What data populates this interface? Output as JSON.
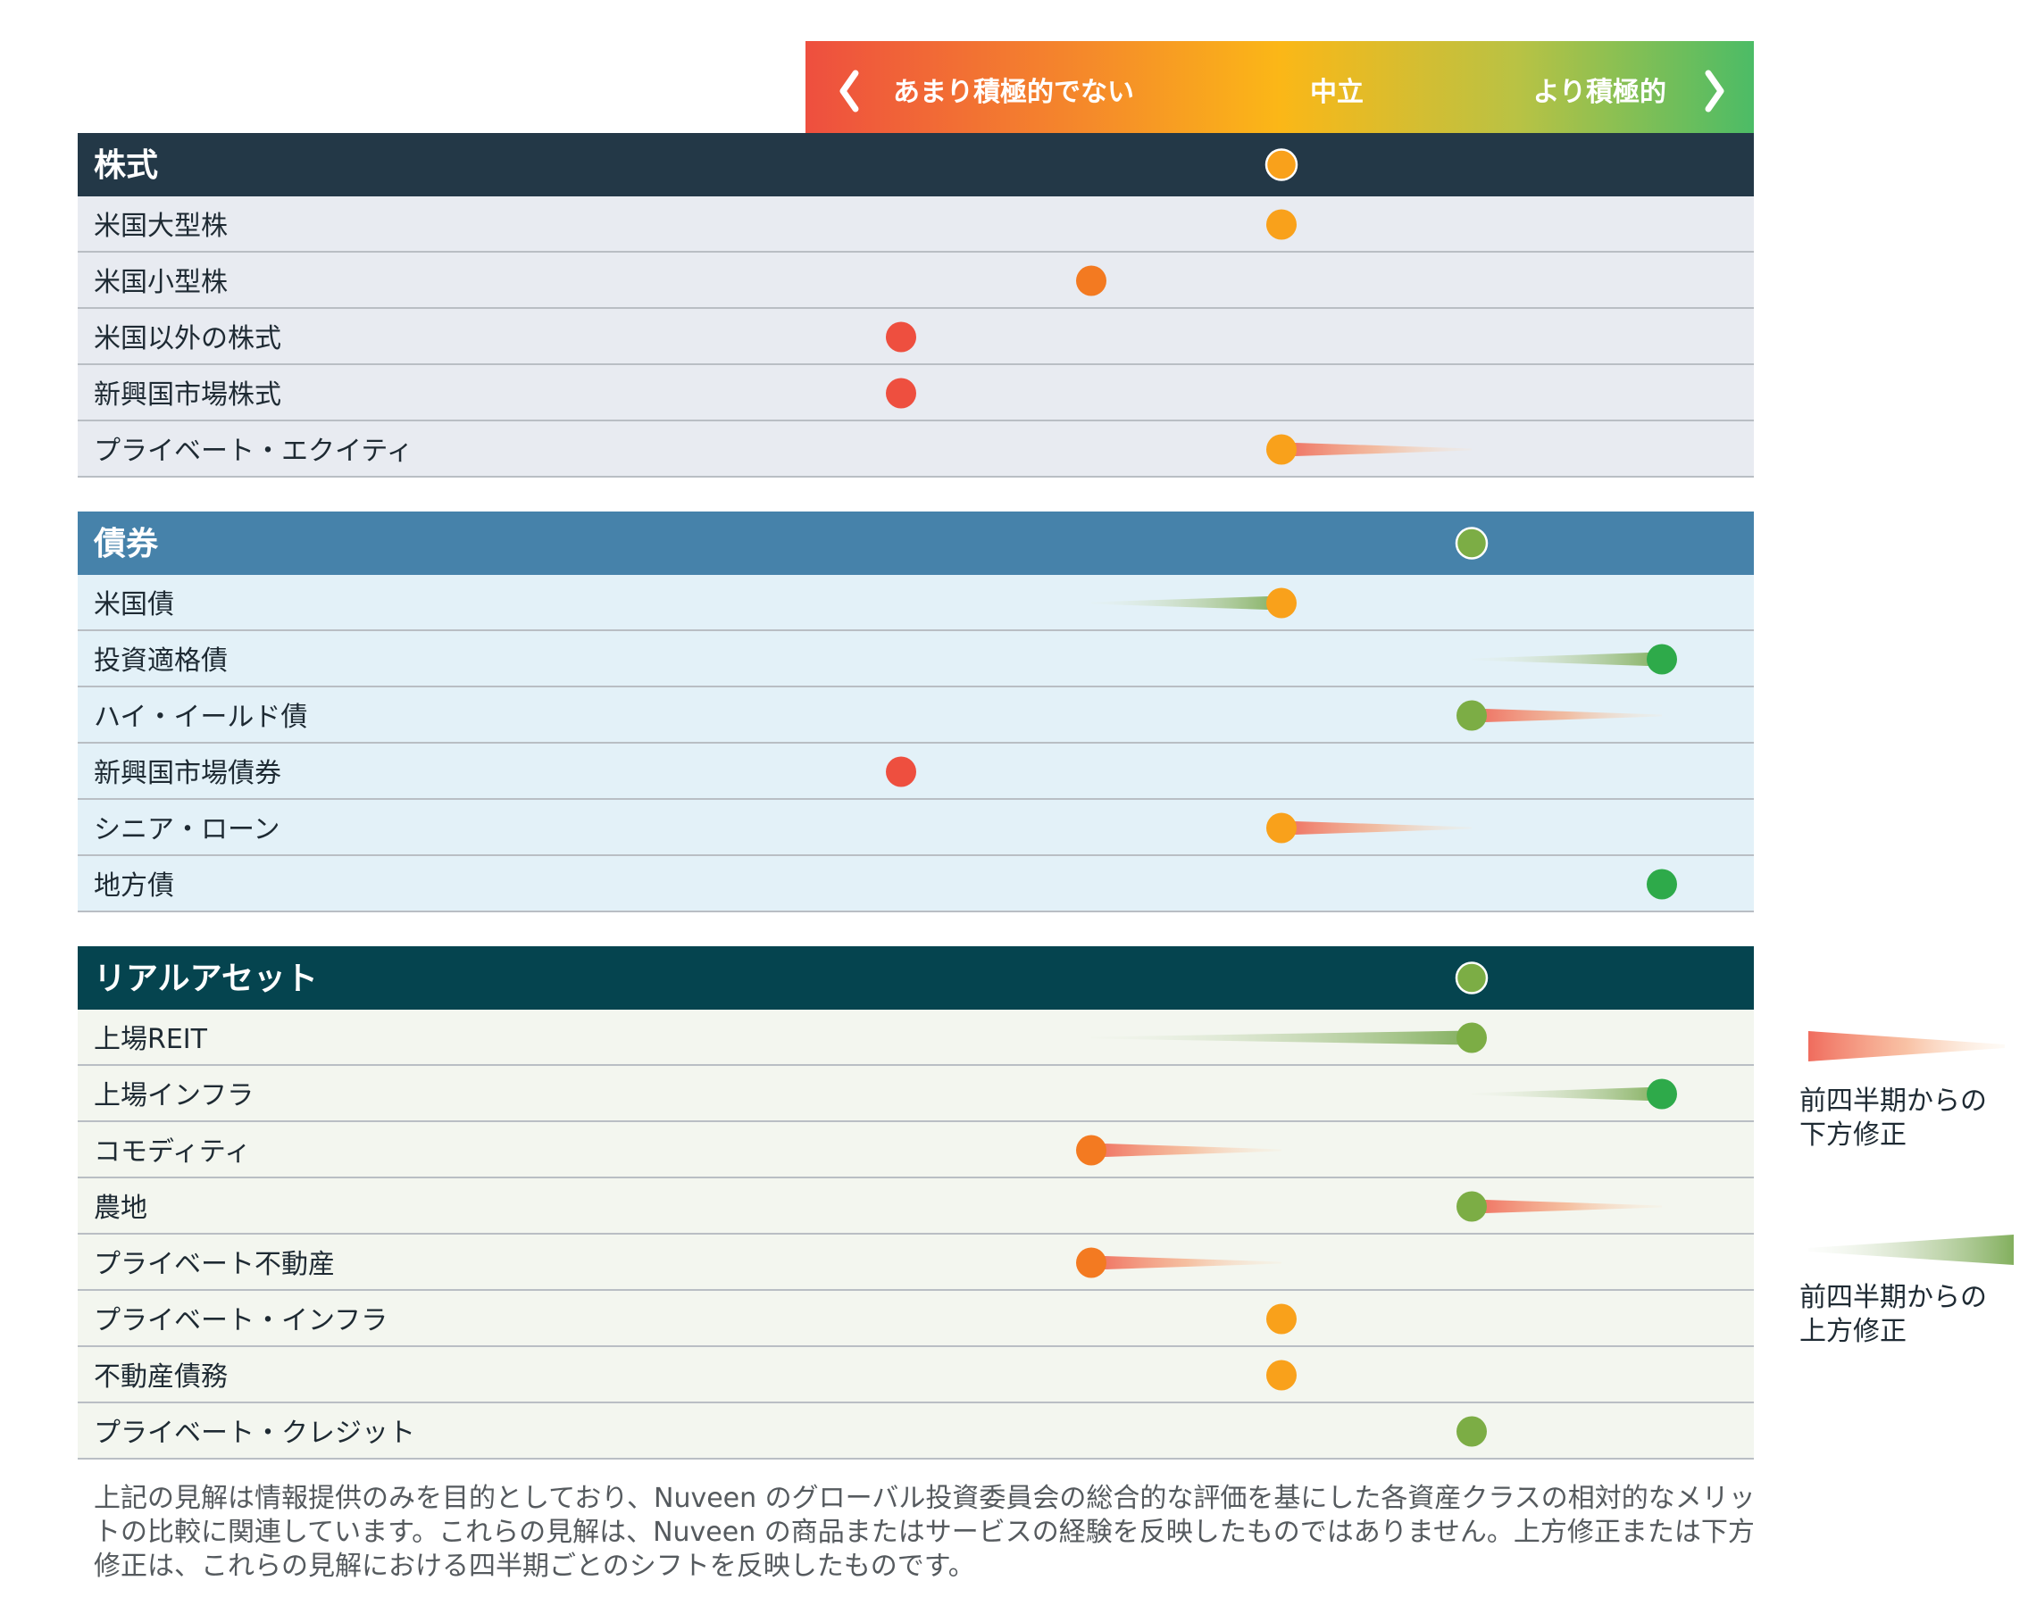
{
  "scale": {
    "less_label": "あまり積極的でない",
    "neutral_label": "中立",
    "more_label": "より積極的",
    "colors": {
      "negative": "#ee4f3f",
      "neutral": "#f9b919",
      "positive": "#4cb963"
    }
  },
  "chart_data": {
    "type": "scatter",
    "levels": 5,
    "level_order": [
      "あまり積極的でない",
      "",
      "中立",
      "",
      "より積極的"
    ],
    "sections": [
      {
        "title": "株式",
        "header_color": "#233847",
        "row_color": "#e8ebf1",
        "overall": 3,
        "overall_color": "#f9a11b",
        "rows": [
          {
            "label": "米国大型株",
            "value": 3,
            "color": "#f9a11b",
            "from": null
          },
          {
            "label": "米国小型株",
            "value": 2,
            "color": "#f37a21",
            "from": null
          },
          {
            "label": "米国以外の株式",
            "value": 1,
            "color": "#ee4f3f",
            "from": null
          },
          {
            "label": "新興国市場株式",
            "value": 1,
            "color": "#ee4f3f",
            "from": null
          },
          {
            "label": "プライベート・エクイティ",
            "value": 3,
            "color": "#f9a11b",
            "from": 4
          }
        ]
      },
      {
        "title": "債券",
        "header_color": "#4682aa",
        "row_color": "#e3f1f8",
        "overall": 4,
        "overall_color": "#7cad45",
        "rows": [
          {
            "label": "米国債",
            "value": 3,
            "color": "#f9a11b",
            "from": 2
          },
          {
            "label": "投資適格債",
            "value": 5,
            "color": "#2eaa4a",
            "from": 4
          },
          {
            "label": "ハイ・イールド債",
            "value": 4,
            "color": "#7cad45",
            "from": 5
          },
          {
            "label": "新興国市場債券",
            "value": 1,
            "color": "#ee4f3f",
            "from": null
          },
          {
            "label": "シニア・ローン",
            "value": 3,
            "color": "#f9a11b",
            "from": 4
          },
          {
            "label": "地方債",
            "value": 5,
            "color": "#2eaa4a",
            "from": null
          }
        ]
      },
      {
        "title": "リアルアセット",
        "header_color": "#05444f",
        "row_color": "#f3f6ef",
        "overall": 4,
        "overall_color": "#7cad45",
        "rows": [
          {
            "label": "上場REIT",
            "value": 4,
            "color": "#7cad45",
            "from": 2
          },
          {
            "label": "上場インフラ",
            "value": 5,
            "color": "#2eaa4a",
            "from": 4
          },
          {
            "label": "コモディティ",
            "value": 2,
            "color": "#f37a21",
            "from": 3
          },
          {
            "label": "農地",
            "value": 4,
            "color": "#7cad45",
            "from": 5
          },
          {
            "label": "プライベート不動産",
            "value": 2,
            "color": "#f37a21",
            "from": 3
          },
          {
            "label": "プライベート・インフラ",
            "value": 3,
            "color": "#f9a11b",
            "from": null
          },
          {
            "label": "不動産債務",
            "value": 3,
            "color": "#f9a11b",
            "from": null
          },
          {
            "label": "プライベート・クレジット",
            "value": 4,
            "color": "#7cad45",
            "from": null
          }
        ]
      }
    ]
  },
  "legend": {
    "downgrade": "前四半期からの\n下方修正",
    "upgrade": "前四半期からの\n上方修正"
  },
  "footnote": "上記の見解は情報提供のみを目的としており、Nuveen のグローバル投資委員会の総合的な評価を基にした各資産クラスの相対的なメリットの比較に関連しています。これらの見解は、Nuveen の商品またはサービスの経験を反映したものではありません。上方修正または下方修正は、これらの見解における四半期ごとのシフトを反映したものです。"
}
